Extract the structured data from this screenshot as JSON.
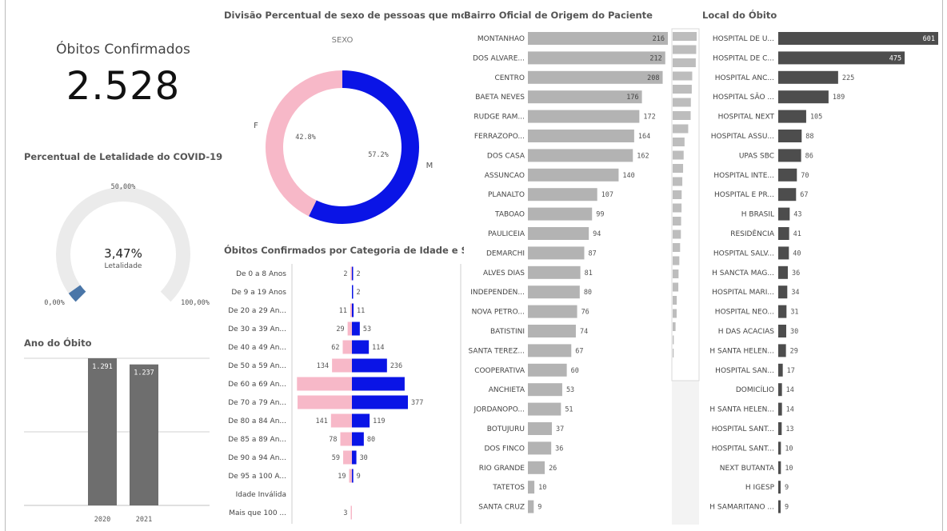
{
  "kpi": {
    "label": "Óbitos Confirmados",
    "value": "2.528"
  },
  "gauge": {
    "title": "Percentual de Letalidade do COVID-19 ...",
    "value_text": "3,47%",
    "sub_label": "Letalidade",
    "min_label": "0,00%",
    "mid_label": "50,00%",
    "max_label": "100,00%",
    "value_fraction": 0.0347,
    "color": "#4a76a8"
  },
  "year_chart": {
    "title": "Ano do Óbito",
    "color": "#6e6e6e"
  },
  "donut": {
    "title": "Divisão Percentual de sexo de pessoas que morr...",
    "legend_title": "SEXO",
    "colors": {
      "F": "#f7b8c8",
      "M": "#0a14e6"
    }
  },
  "age_chart": {
    "title": "Óbitos Confirmados por Categoria de Idade e S...",
    "colors": {
      "F": "#f7b8c8",
      "M": "#0a14e6"
    }
  },
  "bairro_chart": {
    "title": "Bairro Oficial de Origem do Paciente",
    "color": "#b3b3b3"
  },
  "local_chart": {
    "title": "Local do Óbito",
    "color": "#4d4d4d"
  },
  "chart_data": [
    {
      "type": "bar",
      "title": "Ano do Óbito",
      "categories": [
        "2020",
        "2021"
      ],
      "values": [
        1291,
        1237
      ],
      "value_labels": [
        "1.291",
        "1.237"
      ],
      "ylim": [
        0,
        1400
      ]
    },
    {
      "type": "pie",
      "title": "Divisão Percentual de sexo de pessoas que morr...",
      "categories": [
        "F",
        "M"
      ],
      "values": [
        42.8,
        57.2
      ],
      "value_labels": [
        "42.8%",
        "57.2%"
      ]
    },
    {
      "type": "bar",
      "title": "Óbitos Confirmados por Categoria de Idade e S...",
      "categories": [
        "De 0 a 8 Anos",
        "De 9 a 19 Anos",
        "De 20 a 29 An...",
        "De 30 a 39 An...",
        "De 40 a 49 An...",
        "De 50 a 59 An...",
        "De 60 a 69 An...",
        "De 70 a 79 An...",
        "De 80 a 84 An...",
        "De 85 a 89 An...",
        "De 90 a 94 An...",
        "De 95 a 100 A...",
        "Idade Inválida",
        "Mais que 100 ..."
      ],
      "series": [
        {
          "name": "F",
          "values": [
            2,
            null,
            11,
            29,
            62,
            134,
            370,
            366,
            141,
            78,
            59,
            19,
            null,
            3
          ],
          "value_labels": [
            "2",
            "",
            "11",
            "29",
            "62",
            "134",
            "",
            "",
            "141",
            "78",
            "59",
            "19",
            "",
            "3"
          ]
        },
        {
          "name": "M",
          "values": [
            2,
            2,
            11,
            53,
            114,
            236,
            355,
            377,
            119,
            80,
            30,
            9,
            null,
            null
          ],
          "value_labels": [
            "2",
            "2",
            "11",
            "53",
            "114",
            "236",
            "",
            "377",
            "119",
            "80",
            "30",
            "9",
            "",
            ""
          ]
        }
      ],
      "xlim": [
        0,
        380
      ]
    },
    {
      "type": "bar",
      "title": "Bairro Oficial de Origem do Paciente",
      "categories": [
        "MONTANHAO",
        "DOS ALVARE...",
        "CENTRO",
        "BAETA NEVES",
        "RUDGE RAM...",
        "FERRAZOPO...",
        "DOS CASA",
        "ASSUNCAO",
        "PLANALTO",
        "TABOAO",
        "PAULICEIA",
        "DEMARCHI",
        "ALVES DIAS",
        "INDEPENDEN...",
        "NOVA PETRO...",
        "BATISTINI",
        "SANTA TEREZ...",
        "COOPERATIVA",
        "ANCHIETA",
        "JORDANOPO...",
        "BOTUJURU",
        "DOS FINCO",
        "RIO GRANDE",
        "TATETOS",
        "SANTA CRUZ"
      ],
      "values": [
        216,
        212,
        208,
        176,
        172,
        164,
        162,
        140,
        107,
        99,
        94,
        87,
        81,
        80,
        76,
        74,
        67,
        60,
        53,
        51,
        37,
        36,
        26,
        10,
        9
      ],
      "xlim": [
        0,
        220
      ]
    },
    {
      "type": "bar",
      "title": "Local do Óbito",
      "categories": [
        "HOSPITAL DE U...",
        "HOSPITAL DE C...",
        "HOSPITAL ANC...",
        "HOSPITAL SÃO ...",
        "HOSPITAL NEXT",
        "HOSPITAL ASSU...",
        "UPAS SBC",
        "HOSPITAL INTE...",
        "HOSPITAL E PR...",
        "H BRASIL",
        "RESIDÊNCIA",
        "HOSPITAL SALV...",
        "H SANCTA MAG...",
        "HOSPITAL MARI...",
        "HOSPITAL NEO...",
        "H DAS ACACIAS",
        "H SANTA HELEN...",
        "HOSPITAL SAN...",
        "DOMICÍLIO",
        "H SANTA HELEN...",
        "HOSPITAL SANT...",
        "HOSPITAL SANT...",
        "NEXT BUTANTA",
        "H IGESP",
        "H SAMARITANO ..."
      ],
      "values": [
        601,
        475,
        225,
        189,
        105,
        88,
        86,
        70,
        67,
        43,
        41,
        40,
        36,
        34,
        31,
        30,
        29,
        17,
        14,
        14,
        13,
        10,
        10,
        9,
        9
      ],
      "xlim": [
        0,
        610
      ]
    }
  ]
}
